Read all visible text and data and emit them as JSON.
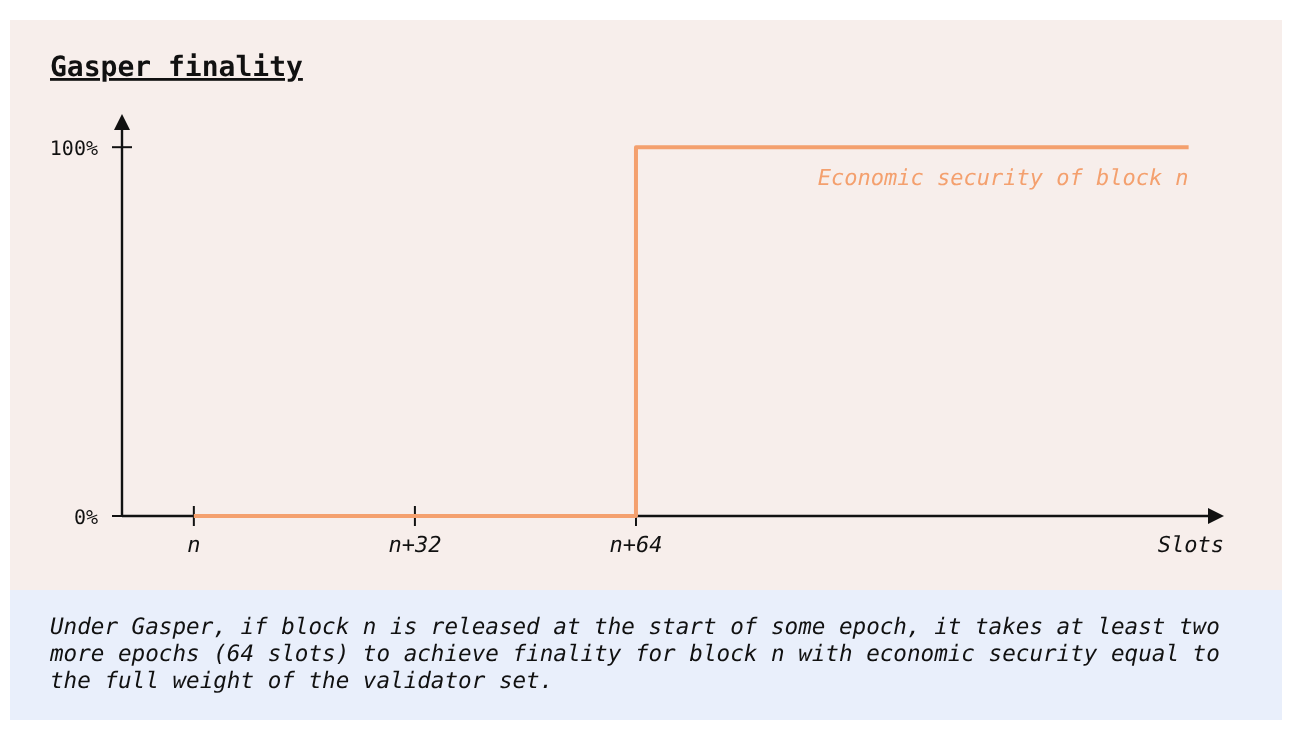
{
  "chart_data": {
    "type": "step",
    "title": "Gasper finality",
    "xlabel": "Slots",
    "categories": [
      "n",
      null,
      "n+32",
      null,
      "n+64",
      null,
      null,
      null,
      null,
      null
    ],
    "series": [
      {
        "name": "Economic security of block n",
        "color": "#f4a06e",
        "values": [
          0,
          0,
          0,
          0,
          100,
          100,
          100,
          100,
          100,
          100
        ]
      }
    ],
    "ylim": [
      0,
      109
    ],
    "yticks": [
      {
        "value": 0,
        "label": "0%"
      },
      {
        "value": 100,
        "label": "100%"
      }
    ],
    "grid": false,
    "legend": false,
    "annotations": [
      "Under Gasper, if block n is released at the start of some epoch, it takes at least two more epochs (64 slots) to achieve finality for block n with economic security equal to the full weight of the validator set."
    ]
  }
}
